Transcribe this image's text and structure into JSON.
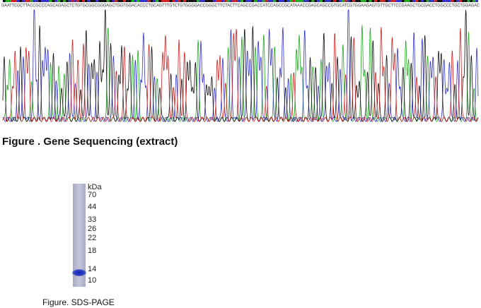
{
  "sequencing": {
    "sequence": "GAATTCGCTTACCGCCCAGCAGAGCTCTGTGCGGCGGGAGCTGGTGGACACCCTGCAGTTTGTCTGTGGGGACCGGGCTTCTACTTCAGCCGACCATCCAGCCGCATAAACCGAGCAGCCGTGCATCGTGGAAGAGTGTTGCTTCCGAAGCTGCGACCTGGCCCTGCTGGAGAC",
    "caption": "Figure . Gene Sequencing (extract)"
  },
  "gel": {
    "unit": "kDa",
    "markers": [
      "70",
      "44",
      "33",
      "26",
      "22",
      "18",
      "14",
      "10"
    ],
    "caption": "Figure. SDS-PAGE"
  }
}
